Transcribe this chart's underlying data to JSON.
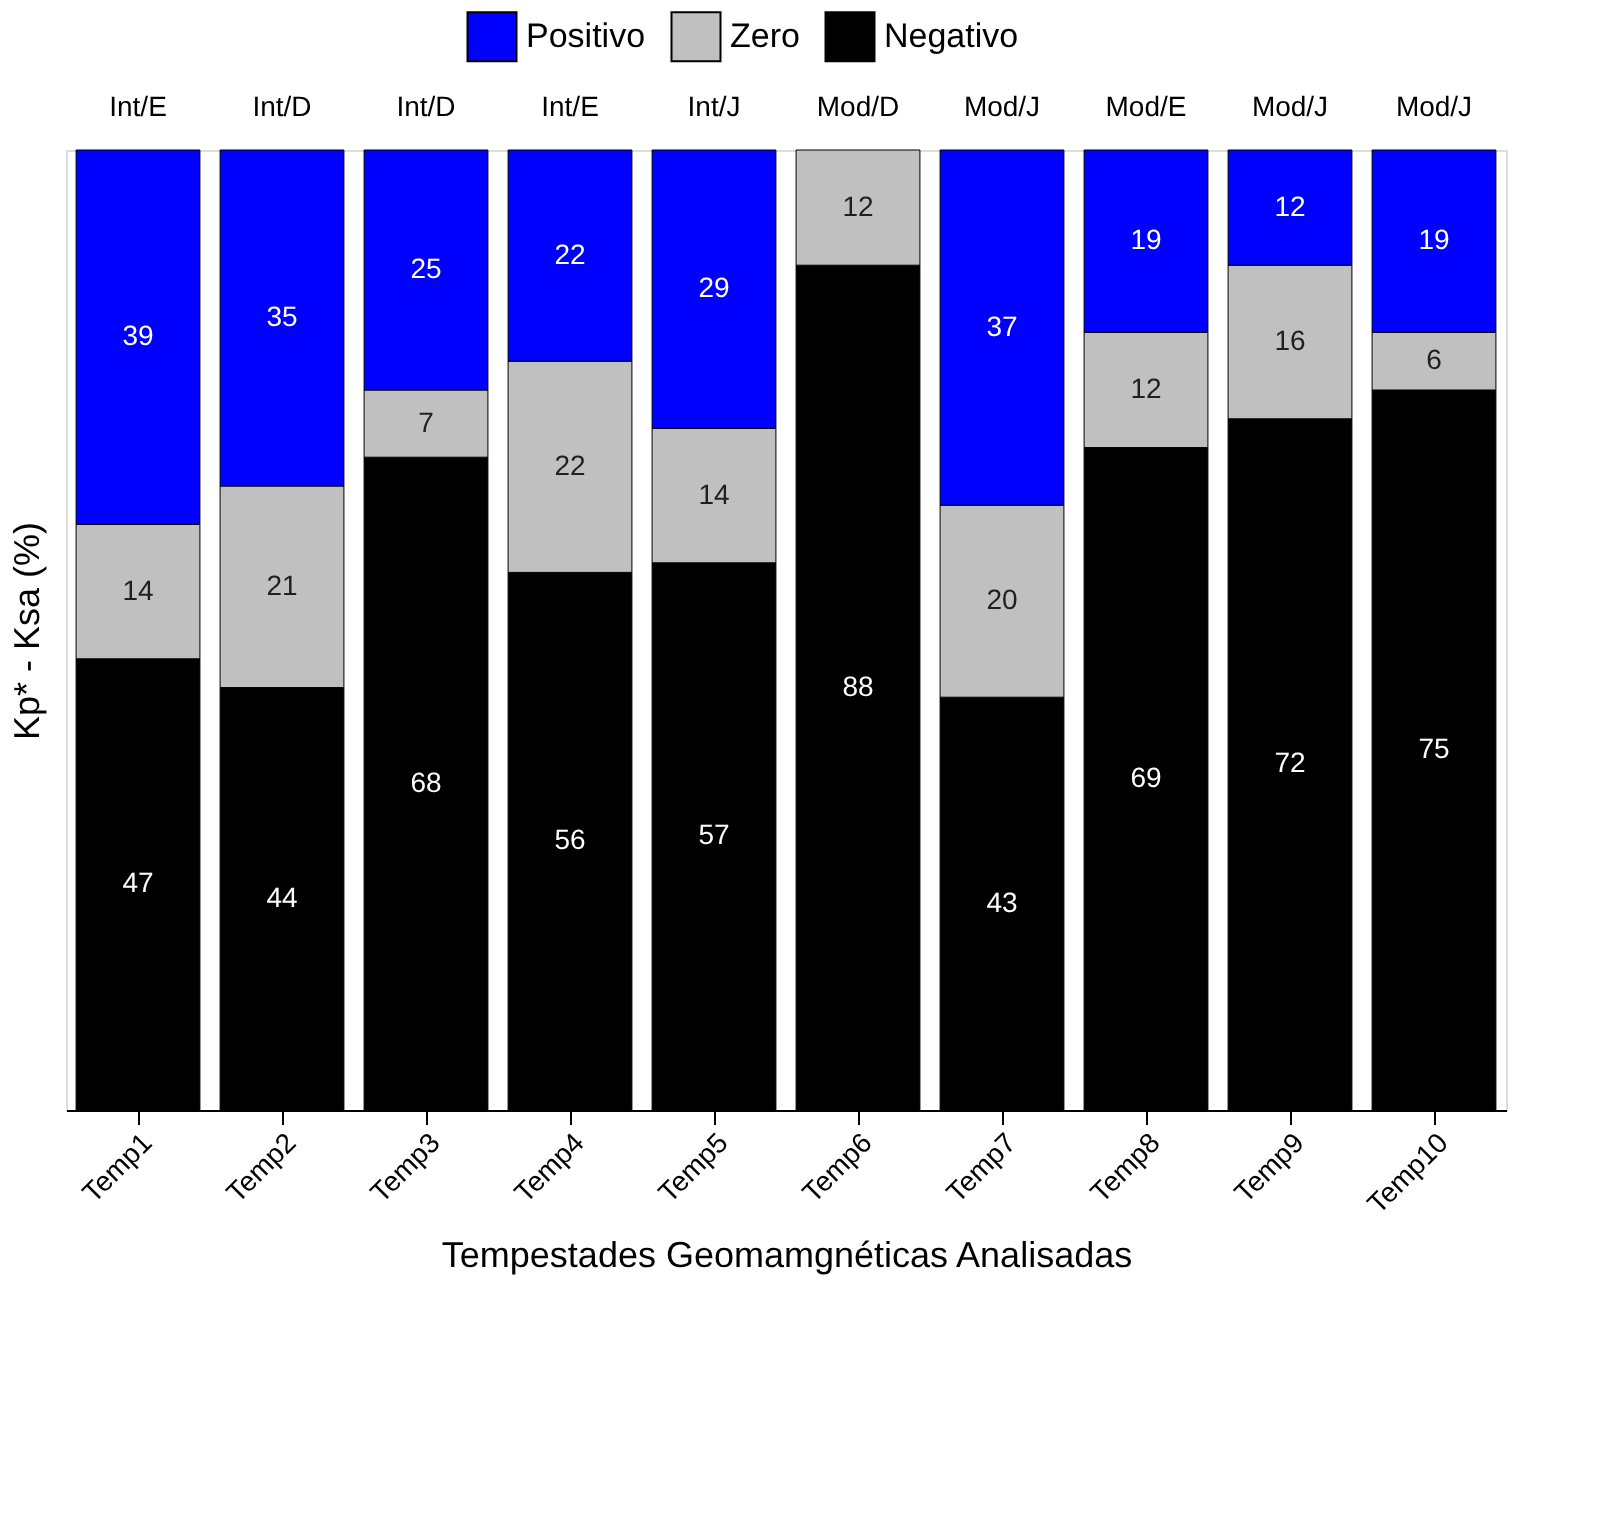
{
  "chart_data": {
    "type": "bar",
    "stacked": true,
    "data_labels": true,
    "legend": "top",
    "grid": false,
    "tick_labels": "x",
    "ylabel": "Kp* - Ksa (%)",
    "xlabel": "Tempestades Geomamgnéticas Analisadas",
    "categories": [
      "Temp1",
      "Temp2",
      "Temp3",
      "Temp4",
      "Temp5",
      "Temp6",
      "Temp7",
      "Temp8",
      "Temp9",
      "Temp10"
    ],
    "series": [
      {
        "name": "Negativo",
        "color": "#000000",
        "values": [
          47,
          44,
          68,
          56,
          57,
          88,
          43,
          69,
          72,
          75
        ]
      },
      {
        "name": "Zero",
        "color": "#c0c0c0",
        "values": [
          14,
          21,
          7,
          22,
          14,
          12,
          20,
          12,
          16,
          6
        ]
      },
      {
        "name": "Positivo",
        "color": "#0000ff",
        "values": [
          39,
          35,
          25,
          22,
          29,
          null,
          37,
          19,
          12,
          19
        ]
      }
    ],
    "annotations": [
      "Int/E",
      "Int/D",
      "Int/D",
      "Int/E",
      "Int/J",
      "Mod/D",
      "Mod/J",
      "Mod/E",
      "Mod/J",
      "Mod/J"
    ]
  }
}
